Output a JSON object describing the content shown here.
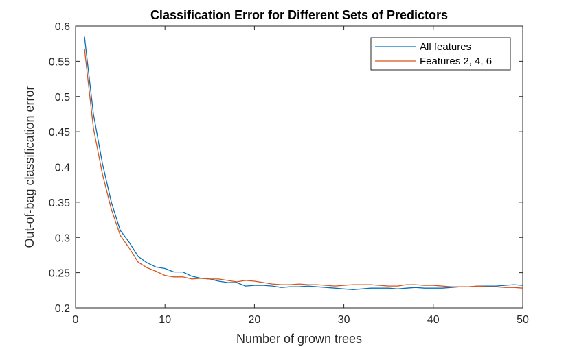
{
  "chart_data": {
    "type": "line",
    "title": "Classification Error for Different Sets of Predictors",
    "xlabel": "Number of grown trees",
    "ylabel": "Out-of-bag classification error",
    "xlim": [
      0,
      50
    ],
    "ylim": [
      0.2,
      0.6
    ],
    "xticks": [
      "0",
      "10",
      "20",
      "30",
      "40",
      "50"
    ],
    "xtick_values": [
      0,
      10,
      20,
      30,
      40,
      50
    ],
    "yticks": [
      "0.2",
      "0.25",
      "0.3",
      "0.35",
      "0.4",
      "0.45",
      "0.5",
      "0.55",
      "0.6"
    ],
    "ytick_values": [
      0.2,
      0.25,
      0.3,
      0.35,
      0.4,
      0.45,
      0.5,
      0.55,
      0.6
    ],
    "grid": false,
    "legend_position": "top-right",
    "x": [
      1,
      2,
      3,
      4,
      5,
      6,
      7,
      8,
      9,
      10,
      11,
      12,
      13,
      14,
      15,
      16,
      17,
      18,
      19,
      20,
      21,
      22,
      23,
      24,
      25,
      26,
      27,
      28,
      29,
      30,
      31,
      32,
      33,
      34,
      35,
      36,
      37,
      38,
      39,
      40,
      41,
      42,
      43,
      44,
      45,
      46,
      47,
      48,
      49,
      50
    ],
    "series": [
      {
        "name": "All features",
        "color": "#0072BD",
        "values": [
          0.585,
          0.475,
          0.405,
          0.35,
          0.31,
          0.293,
          0.273,
          0.264,
          0.258,
          0.256,
          0.251,
          0.251,
          0.245,
          0.242,
          0.241,
          0.238,
          0.236,
          0.236,
          0.231,
          0.232,
          0.232,
          0.231,
          0.229,
          0.23,
          0.23,
          0.231,
          0.23,
          0.229,
          0.228,
          0.227,
          0.226,
          0.227,
          0.228,
          0.228,
          0.228,
          0.227,
          0.228,
          0.229,
          0.228,
          0.228,
          0.228,
          0.229,
          0.23,
          0.23,
          0.231,
          0.231,
          0.231,
          0.232,
          0.233,
          0.232
        ]
      },
      {
        "name": "Features 2, 4, 6",
        "color": "#D95319",
        "values": [
          0.568,
          0.455,
          0.39,
          0.34,
          0.303,
          0.285,
          0.265,
          0.257,
          0.252,
          0.246,
          0.244,
          0.244,
          0.241,
          0.242,
          0.241,
          0.241,
          0.239,
          0.237,
          0.239,
          0.238,
          0.236,
          0.234,
          0.233,
          0.233,
          0.234,
          0.233,
          0.233,
          0.232,
          0.231,
          0.232,
          0.233,
          0.233,
          0.233,
          0.232,
          0.231,
          0.231,
          0.233,
          0.233,
          0.232,
          0.232,
          0.231,
          0.23,
          0.23,
          0.23,
          0.231,
          0.23,
          0.23,
          0.229,
          0.229,
          0.228
        ]
      }
    ]
  }
}
